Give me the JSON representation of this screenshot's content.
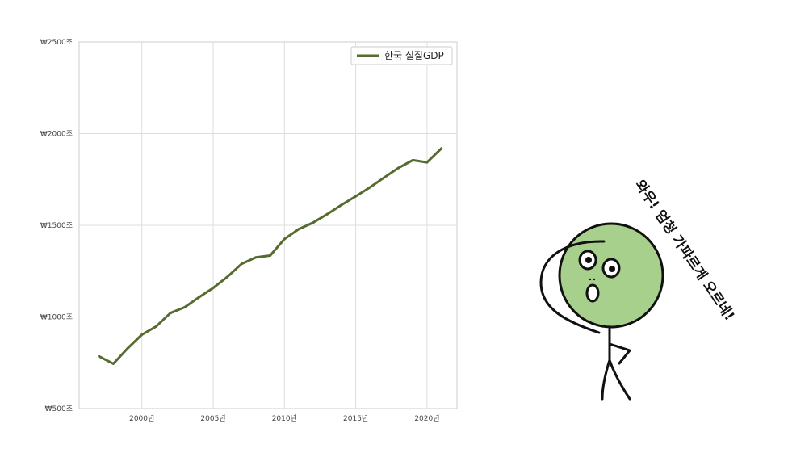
{
  "chart_data": {
    "type": "line",
    "title": "",
    "xlabel": "",
    "ylabel": "",
    "x": [
      1997,
      1998,
      1999,
      2000,
      2001,
      2002,
      2003,
      2004,
      2005,
      2006,
      2007,
      2008,
      2009,
      2010,
      2011,
      2012,
      2013,
      2014,
      2015,
      2016,
      2017,
      2018,
      2019,
      2020,
      2021
    ],
    "series": [
      {
        "name": "한국 실질GDP",
        "color": "#556b2f",
        "values": [
          785,
          745,
          828,
          903,
          948,
          1021,
          1053,
          1107,
          1158,
          1219,
          1290,
          1325,
          1335,
          1425,
          1479,
          1514,
          1561,
          1611,
          1658,
          1707,
          1761,
          1813,
          1855,
          1843,
          1919
        ]
      }
    ],
    "xlim": [
      1995.6,
      2022.1
    ],
    "ylim": [
      500,
      2500
    ],
    "xticks": [
      2000,
      2005,
      2010,
      2015,
      2020
    ],
    "xtick_labels": [
      "2000년",
      "2005년",
      "2010년",
      "2015년",
      "2020년"
    ],
    "yticks": [
      500,
      1000,
      1500,
      2000,
      2500
    ],
    "ytick_labels": [
      "₩500조",
      "₩1000조",
      "₩1500조",
      "₩2000조",
      "₩2500조"
    ],
    "grid": true,
    "legend_position": "top-right"
  },
  "illustration": {
    "speech_text": "와우! 엄청 가파르게 오르네!",
    "face_color": "#a8d08d"
  }
}
